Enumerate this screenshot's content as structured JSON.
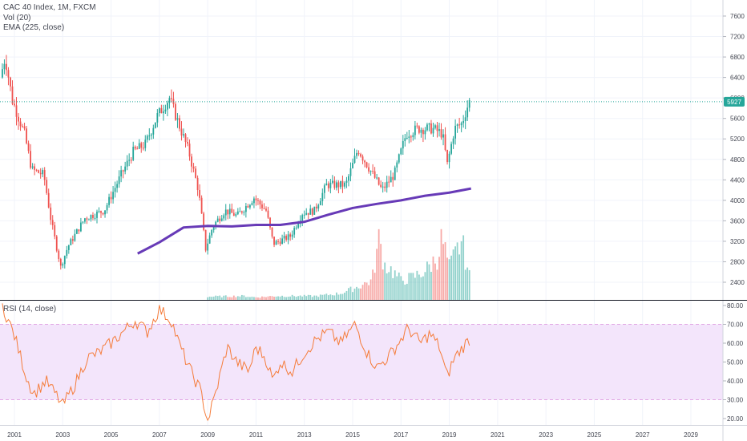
{
  "legend": {
    "symbol": "CAC 40 Index, 1M, FXCM",
    "volume": "Vol (20)",
    "ema": "EMA (225, close)",
    "rsi": "RSI (14, close)"
  },
  "last_price_label": "5927",
  "colors": {
    "up": "#26a69a",
    "down": "#ef5350",
    "ema": "#673ab7",
    "rsi_line": "#f57c3a",
    "rsi_band_fill": "#f3e5fb",
    "rsi_band_line": "#e1a8e4",
    "grid": "#f0f3fa",
    "axis_text": "#434651",
    "last_line": "#26a69a"
  },
  "chart_data": [
    {
      "type": "candlestick",
      "title": "CAC 40 Index, 1M, FXCM",
      "x_range": [
        2000.5,
        2030.0
      ],
      "price_axis_ticks": [
        2400,
        2800,
        3200,
        3600,
        4000,
        4400,
        4800,
        5200,
        5600,
        6000,
        6400,
        6800,
        7200,
        7600
      ],
      "price_range": [
        2000,
        7900
      ],
      "price_keypoints": [
        [
          2000.5,
          6400
        ],
        [
          2000.7,
          6800
        ],
        [
          2001.0,
          5950
        ],
        [
          2001.5,
          5300
        ],
        [
          2001.8,
          4600
        ],
        [
          2002.3,
          4500
        ],
        [
          2002.6,
          3600
        ],
        [
          2003.0,
          2700
        ],
        [
          2003.3,
          3100
        ],
        [
          2004.0,
          3650
        ],
        [
          2004.8,
          3800
        ],
        [
          2005.5,
          4500
        ],
        [
          2006.0,
          4950
        ],
        [
          2006.5,
          5100
        ],
        [
          2007.0,
          5650
        ],
        [
          2007.5,
          6000
        ],
        [
          2007.8,
          5600
        ],
        [
          2008.3,
          4950
        ],
        [
          2008.7,
          4200
        ],
        [
          2009.0,
          3050
        ],
        [
          2009.3,
          3500
        ],
        [
          2009.8,
          3800
        ],
        [
          2010.3,
          3700
        ],
        [
          2011.0,
          4050
        ],
        [
          2011.5,
          3800
        ],
        [
          2011.8,
          3150
        ],
        [
          2012.5,
          3300
        ],
        [
          2013.0,
          3750
        ],
        [
          2013.5,
          3800
        ],
        [
          2014.0,
          4300
        ],
        [
          2014.8,
          4300
        ],
        [
          2015.3,
          5000
        ],
        [
          2015.8,
          4600
        ],
        [
          2016.3,
          4200
        ],
        [
          2016.8,
          4500
        ],
        [
          2017.3,
          5300
        ],
        [
          2017.8,
          5400
        ],
        [
          2018.4,
          5400
        ],
        [
          2018.8,
          5300
        ],
        [
          2019.0,
          4700
        ],
        [
          2019.3,
          5400
        ],
        [
          2019.6,
          5500
        ],
        [
          2019.9,
          5927
        ]
      ],
      "ema": {
        "name": "EMA (225, close)",
        "points": [
          [
            2006.1,
            2960
          ],
          [
            2007.0,
            3180
          ],
          [
            2008.0,
            3470
          ],
          [
            2009.0,
            3500
          ],
          [
            2010.0,
            3490
          ],
          [
            2011.0,
            3520
          ],
          [
            2012.0,
            3520
          ],
          [
            2013.0,
            3580
          ],
          [
            2014.0,
            3720
          ],
          [
            2015.0,
            3850
          ],
          [
            2016.0,
            3930
          ],
          [
            2017.0,
            4000
          ],
          [
            2018.0,
            4090
          ],
          [
            2019.0,
            4150
          ],
          [
            2019.9,
            4230
          ]
        ]
      },
      "last_price": 5927
    },
    {
      "type": "bar",
      "title": "Vol (20)",
      "volume_keypoints": [
        [
          2009.0,
          0.05
        ],
        [
          2010.5,
          0.06
        ],
        [
          2011.0,
          0.04
        ],
        [
          2011.8,
          0.06
        ],
        [
          2012.5,
          0.06
        ],
        [
          2013.5,
          0.06
        ],
        [
          2014.5,
          0.1
        ],
        [
          2015.2,
          0.2
        ],
        [
          2015.8,
          0.3
        ],
        [
          2016.1,
          0.95
        ],
        [
          2016.3,
          0.55
        ],
        [
          2016.5,
          0.5
        ],
        [
          2017.0,
          0.3
        ],
        [
          2017.5,
          0.35
        ],
        [
          2018.0,
          0.45
        ],
        [
          2018.5,
          0.65
        ],
        [
          2018.7,
          0.95
        ],
        [
          2019.0,
          0.5
        ],
        [
          2019.5,
          0.9
        ],
        [
          2019.7,
          0.6
        ],
        [
          2019.9,
          0.25
        ]
      ]
    },
    {
      "type": "line",
      "title": "RSI (14, close)",
      "ylim": [
        15,
        82
      ],
      "y_ticks": [
        20,
        30,
        40,
        50,
        60,
        70,
        80
      ],
      "band": [
        30,
        70
      ],
      "points": [
        [
          2000.5,
          80
        ],
        [
          2001.0,
          64
        ],
        [
          2001.5,
          42
        ],
        [
          2001.8,
          33
        ],
        [
          2002.3,
          40
        ],
        [
          2002.7,
          33
        ],
        [
          2003.0,
          27
        ],
        [
          2003.5,
          38
        ],
        [
          2004.0,
          52
        ],
        [
          2004.5,
          55
        ],
        [
          2005.0,
          60
        ],
        [
          2005.5,
          66
        ],
        [
          2006.0,
          72
        ],
        [
          2006.5,
          66
        ],
        [
          2007.0,
          78
        ],
        [
          2007.5,
          72
        ],
        [
          2007.8,
          60
        ],
        [
          2008.3,
          45
        ],
        [
          2008.7,
          35
        ],
        [
          2009.0,
          19
        ],
        [
          2009.3,
          32
        ],
        [
          2009.8,
          58
        ],
        [
          2010.2,
          50
        ],
        [
          2010.7,
          45
        ],
        [
          2011.0,
          58
        ],
        [
          2011.4,
          52
        ],
        [
          2011.7,
          40
        ],
        [
          2012.0,
          50
        ],
        [
          2012.5,
          45
        ],
        [
          2013.0,
          55
        ],
        [
          2013.5,
          62
        ],
        [
          2014.0,
          66
        ],
        [
          2014.5,
          60
        ],
        [
          2015.1,
          70
        ],
        [
          2015.6,
          55
        ],
        [
          2016.0,
          47
        ],
        [
          2016.5,
          53
        ],
        [
          2017.0,
          62
        ],
        [
          2017.3,
          68
        ],
        [
          2017.8,
          60
        ],
        [
          2018.2,
          65
        ],
        [
          2018.6,
          58
        ],
        [
          2018.9,
          42
        ],
        [
          2019.2,
          52
        ],
        [
          2019.5,
          57
        ],
        [
          2019.9,
          63
        ]
      ]
    }
  ],
  "time_axis_labels": [
    "2001",
    "2003",
    "2005",
    "2007",
    "2009",
    "2011",
    "2013",
    "2015",
    "2017",
    "2019",
    "2021",
    "2023",
    "2025",
    "2027",
    "2029"
  ],
  "rsi_axis_labels": [
    "80.00",
    "70.00",
    "60.00",
    "50.00",
    "40.00",
    "30.00",
    "20.00"
  ]
}
